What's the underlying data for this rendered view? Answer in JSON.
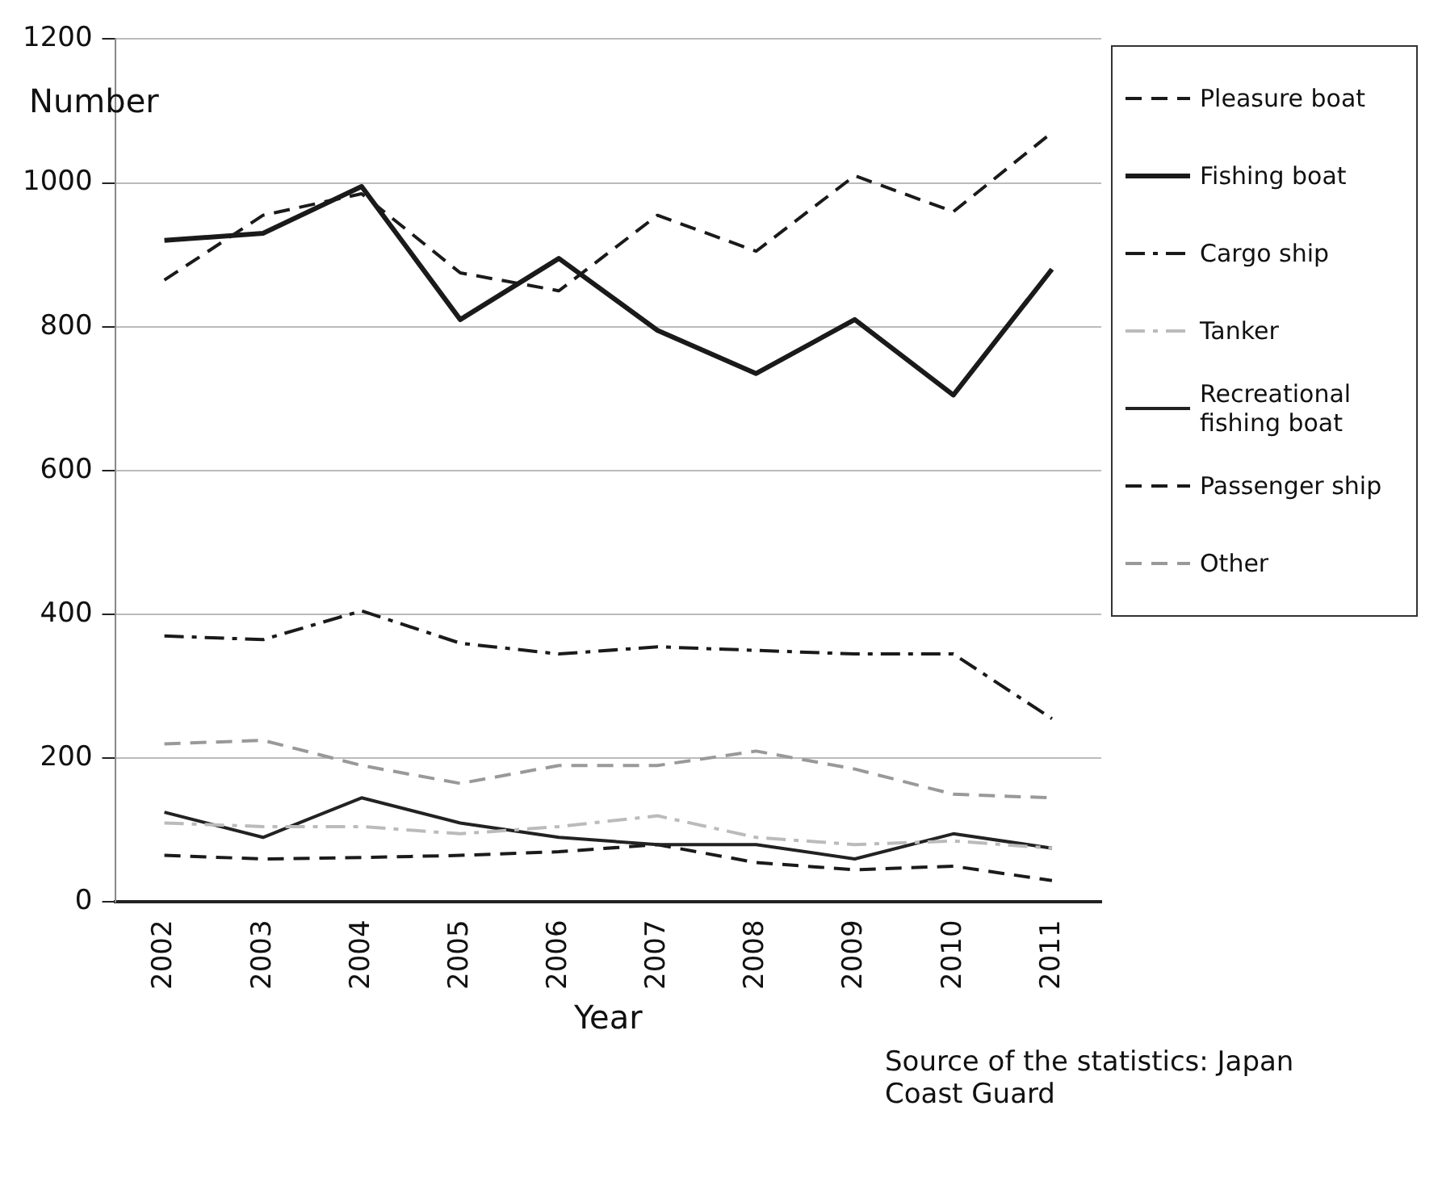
{
  "chart_data": {
    "type": "line",
    "xlabel": "Year",
    "ylabel": "Number",
    "categories": [
      "2002",
      "2003",
      "2004",
      "2005",
      "2006",
      "2007",
      "2008",
      "2009",
      "2010",
      "2011"
    ],
    "series": [
      {
        "name": "Pleasure boat",
        "color": "#1a1a1a",
        "line_style": "dashed",
        "values": [
          865,
          955,
          985,
          875,
          850,
          955,
          905,
          1010,
          960,
          1070
        ]
      },
      {
        "name": "Fishing boat",
        "color": "#1a1a1a",
        "line_style": "solid",
        "values": [
          920,
          930,
          995,
          810,
          895,
          795,
          735,
          810,
          705,
          880
        ]
      },
      {
        "name": "Cargo ship",
        "color": "#1a1a1a",
        "line_style": "dashdot",
        "values": [
          370,
          365,
          405,
          360,
          345,
          355,
          350,
          345,
          345,
          255
        ]
      },
      {
        "name": "Tanker",
        "color": "#bbbbbb",
        "line_style": "dashdot",
        "values": [
          110,
          105,
          105,
          95,
          105,
          120,
          90,
          80,
          85,
          75
        ]
      },
      {
        "name": "Recreational fishing boat",
        "color": "#222222",
        "line_style": "solid",
        "values": [
          125,
          90,
          145,
          110,
          90,
          80,
          80,
          60,
          95,
          75
        ]
      },
      {
        "name": "Passenger ship",
        "color": "#1a1a1a",
        "line_style": "dashed",
        "values": [
          65,
          60,
          62,
          65,
          70,
          80,
          55,
          45,
          50,
          30
        ]
      },
      {
        "name": "Other",
        "color": "#999999",
        "line_style": "dashed",
        "values": [
          220,
          225,
          190,
          165,
          190,
          190,
          210,
          185,
          150,
          145
        ]
      }
    ],
    "ylim": [
      0,
      1200
    ],
    "yticks": [
      0,
      200,
      400,
      600,
      800,
      1000,
      1200
    ],
    "grid": "y",
    "legend": "right",
    "marker": "none",
    "annotations": [
      "Source of the statistics: Japan Coast Guard"
    ]
  }
}
